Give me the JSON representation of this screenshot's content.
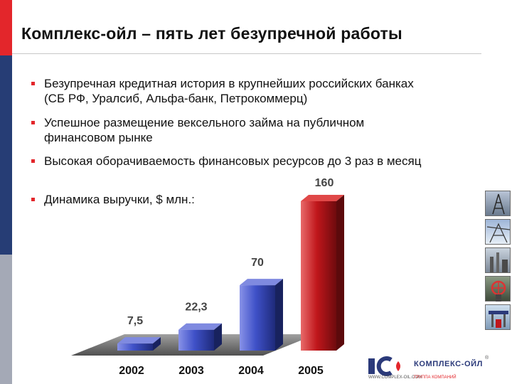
{
  "slide": {
    "title": "Комплекс-ойл – пять лет безупречной работы",
    "accent_colors": {
      "red": "#e3262b",
      "navy": "#263d75",
      "grey": "#a4a9b6"
    },
    "bullets": [
      {
        "text": "Безупречная кредитная история в крупнейших российских банках (СБ РФ, Уралсиб, Альфа-банк, Петрокоммерц)"
      },
      {
        "text": "Успешное размещение вексельного займа на публичном финансовом рынке"
      },
      {
        "text": "Высокая оборачиваемость финансовых ресурсов до 3 раз в месяц"
      },
      {
        "text": "Динамика выручки, $ млн.:"
      }
    ]
  },
  "chart_data": {
    "type": "bar",
    "categories": [
      "2002",
      "2003",
      "2004",
      "2005"
    ],
    "values": [
      7.5,
      22.3,
      70,
      160
    ],
    "data_labels": [
      "7,5",
      "22,3",
      "70",
      "160"
    ],
    "bar_colors": [
      "#3b4fc0",
      "#3b4fc0",
      "#3b4fc0",
      "#c0161b"
    ],
    "title": "",
    "xlabel": "",
    "ylabel": "",
    "ylim": [
      0,
      160
    ],
    "grid": false,
    "legend": "none",
    "style": "3d"
  },
  "side_thumbnails": [
    {
      "icon": "oil-derrick-photo"
    },
    {
      "icon": "power-line-photo"
    },
    {
      "icon": "refinery-photo"
    },
    {
      "icon": "valve-photo"
    },
    {
      "icon": "fuel-station-photo"
    }
  ],
  "logo": {
    "icon": "company-logo",
    "brand": "КОМПЛЕКС-ОЙЛ",
    "url": "WWW.COMPLEX-OIL.COM",
    "group": "ГРУППА КОМПАНИЙ",
    "reg": "®"
  }
}
